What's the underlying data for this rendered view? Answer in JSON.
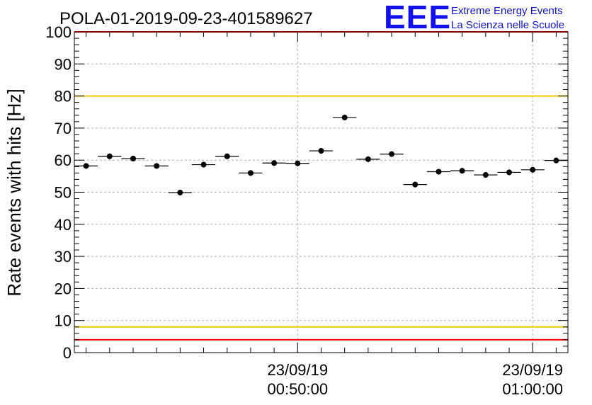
{
  "chart_data": {
    "type": "scatter",
    "title": "POLA-01-2019-09-23-401589627",
    "ylabel": "Rate events with hits [Hz]",
    "xlabel": "",
    "ylim": [
      0,
      100
    ],
    "yticks": [
      0,
      10,
      20,
      30,
      40,
      50,
      60,
      70,
      80,
      90,
      100
    ],
    "x_unit": "minutes since 23/09/19 00:50:00",
    "xlim": [
      -9.5,
      11.5
    ],
    "xticks": [
      {
        "x": 0,
        "date": "23/09/19",
        "time": "00:50:00"
      },
      {
        "x": 10,
        "date": "23/09/19",
        "time": "01:00:00"
      }
    ],
    "bin_width": 1,
    "grid": true,
    "series": [
      {
        "name": "",
        "color": "#000000",
        "points": [
          {
            "x": -9.0,
            "y": 58.2
          },
          {
            "x": -8.0,
            "y": 61.2
          },
          {
            "x": -7.0,
            "y": 60.5
          },
          {
            "x": -6.0,
            "y": 58.2
          },
          {
            "x": -5.0,
            "y": 49.9
          },
          {
            "x": -4.0,
            "y": 58.6
          },
          {
            "x": -3.0,
            "y": 61.2
          },
          {
            "x": -2.0,
            "y": 56.0
          },
          {
            "x": -1.0,
            "y": 59.1
          },
          {
            "x": 0.0,
            "y": 59.0
          },
          {
            "x": 1.0,
            "y": 62.9
          },
          {
            "x": 2.0,
            "y": 73.3
          },
          {
            "x": 3.0,
            "y": 60.3
          },
          {
            "x": 4.0,
            "y": 61.9
          },
          {
            "x": 5.0,
            "y": 52.4
          },
          {
            "x": 6.0,
            "y": 56.4
          },
          {
            "x": 7.0,
            "y": 56.7
          },
          {
            "x": 8.0,
            "y": 55.4
          },
          {
            "x": 9.0,
            "y": 56.2
          },
          {
            "x": 10.0,
            "y": 57.0
          },
          {
            "x": 11.0,
            "y": 59.9
          }
        ]
      }
    ],
    "reference_lines": [
      {
        "y": 100,
        "color": "#ff0000"
      },
      {
        "y": 80,
        "color": "#f0c800"
      },
      {
        "y": 8,
        "color": "#f0c800"
      },
      {
        "y": 4,
        "color": "#ff0000"
      }
    ]
  },
  "logo": {
    "mark": "EEE",
    "line1": "Extreme Energy Events",
    "line2": "La Scienza nelle Scuole",
    "color": "#1010f0"
  }
}
